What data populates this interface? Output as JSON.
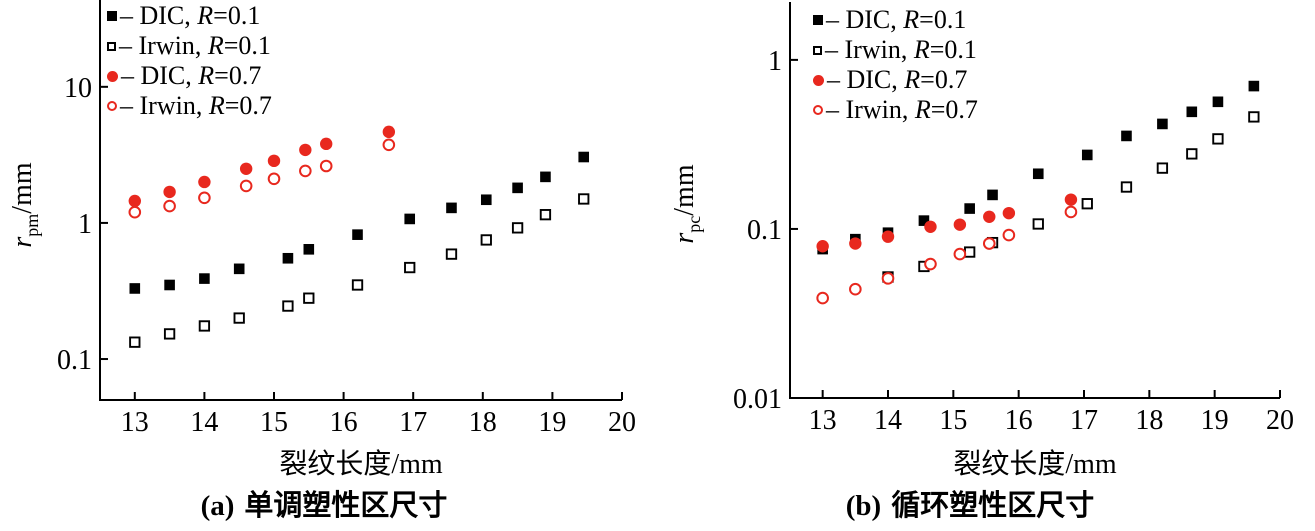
{
  "figure": {
    "background": "#ffffff",
    "accent_red": "#e8281e",
    "accent_black": "#000000"
  },
  "chart_data": [
    {
      "type": "scatter",
      "caption_tag": "(a)",
      "caption_text": "单调塑性区尺寸",
      "xlabel": "裂纹长度/mm",
      "ylabel_sym": "r",
      "ylabel_sub": "pm",
      "ylabel_unit": "/mm",
      "x_axis": {
        "lim": [
          12.5,
          20
        ],
        "ticks": [
          13,
          14,
          15,
          16,
          17,
          18,
          19,
          20
        ]
      },
      "y_axis": {
        "scale": "log",
        "lim": [
          0.05,
          42
        ],
        "ticks": [
          {
            "value": 0.1,
            "label": "0.1"
          },
          {
            "value": 1,
            "label": "1"
          },
          {
            "value": 10,
            "label": "10"
          }
        ]
      },
      "legend": [
        {
          "marker": "square-filled",
          "color": "#000000",
          "prefix": "– DIC, ",
          "r": "R",
          "value": "=0.1"
        },
        {
          "marker": "square-open",
          "color": "#000000",
          "prefix": "– Irwin, ",
          "r": "R",
          "value": "=0.1"
        },
        {
          "marker": "circle-filled",
          "color": "#e8281e",
          "prefix": "– DIC, ",
          "r": "R",
          "value": "=0.7"
        },
        {
          "marker": "circle-open",
          "color": "#e8281e",
          "prefix": "– Irwin, ",
          "r": "R",
          "value": "=0.7"
        }
      ],
      "series": [
        {
          "name": "DIC, R=0.1",
          "marker": "square-filled",
          "color": "#000000",
          "x": [
            13.0,
            13.5,
            14.0,
            14.5,
            15.2,
            15.5,
            16.2,
            16.95,
            17.55,
            18.05,
            18.5,
            18.9,
            19.45
          ],
          "y": [
            0.33,
            0.35,
            0.39,
            0.46,
            0.55,
            0.64,
            0.82,
            1.07,
            1.29,
            1.48,
            1.81,
            2.18,
            3.05
          ]
        },
        {
          "name": "Irwin, R=0.1",
          "marker": "square-open",
          "color": "#000000",
          "x": [
            13.0,
            13.5,
            14.0,
            14.5,
            15.2,
            15.5,
            16.2,
            16.95,
            17.55,
            18.05,
            18.5,
            18.9,
            19.45
          ],
          "y": [
            0.133,
            0.153,
            0.175,
            0.2,
            0.245,
            0.28,
            0.35,
            0.47,
            0.59,
            0.75,
            0.92,
            1.15,
            1.5
          ]
        },
        {
          "name": "DIC, R=0.7",
          "marker": "circle-filled",
          "color": "#e8281e",
          "x": [
            13.0,
            13.5,
            14.0,
            14.6,
            15.0,
            15.45,
            15.75,
            16.65
          ],
          "y": [
            1.45,
            1.69,
            2.0,
            2.5,
            2.86,
            3.44,
            3.81,
            4.67
          ]
        },
        {
          "name": "Irwin, R=0.7",
          "marker": "circle-open",
          "color": "#e8281e",
          "x": [
            13.0,
            13.5,
            14.0,
            14.6,
            15.0,
            15.45,
            15.75,
            16.65
          ],
          "y": [
            1.2,
            1.33,
            1.53,
            1.87,
            2.11,
            2.41,
            2.62,
            3.75
          ]
        }
      ]
    },
    {
      "type": "scatter",
      "caption_tag": "(b)",
      "caption_text": "循环塑性区尺寸",
      "xlabel": "裂纹长度/mm",
      "ylabel_sym": "r",
      "ylabel_sub": "pc",
      "ylabel_unit": "/mm",
      "x_axis": {
        "lim": [
          12.5,
          20
        ],
        "ticks": [
          13,
          14,
          15,
          16,
          17,
          18,
          19,
          20
        ]
      },
      "y_axis": {
        "scale": "log",
        "lim": [
          0.01,
          2.2
        ],
        "ticks": [
          {
            "value": 0.01,
            "label": "0.01"
          },
          {
            "value": 0.1,
            "label": "0.1"
          },
          {
            "value": 1,
            "label": "1"
          }
        ]
      },
      "legend": [
        {
          "marker": "square-filled",
          "color": "#000000",
          "prefix": "– DIC, ",
          "r": "R",
          "value": "=0.1"
        },
        {
          "marker": "square-open",
          "color": "#000000",
          "prefix": "– Irwin, ",
          "r": "R",
          "value": "=0.1"
        },
        {
          "marker": "circle-filled",
          "color": "#e8281e",
          "prefix": "– DIC, ",
          "r": "R",
          "value": "=0.7"
        },
        {
          "marker": "circle-open",
          "color": "#e8281e",
          "prefix": "– Irwin, ",
          "r": "R",
          "value": "=0.7"
        }
      ],
      "series": [
        {
          "name": "DIC, R=0.1",
          "marker": "square-filled",
          "color": "#000000",
          "x": [
            13.0,
            13.5,
            14.0,
            14.55,
            15.25,
            15.6,
            16.3,
            17.05,
            17.65,
            18.2,
            18.65,
            19.05,
            19.6
          ],
          "y": [
            0.076,
            0.087,
            0.095,
            0.112,
            0.132,
            0.159,
            0.212,
            0.274,
            0.355,
            0.418,
            0.493,
            0.565,
            0.7
          ]
        },
        {
          "name": "Irwin, R=0.1",
          "marker": "square-open",
          "color": "#000000",
          "x": [
            14.0,
            14.55,
            15.25,
            15.6,
            16.3,
            17.05,
            17.65,
            18.2,
            18.65,
            19.05,
            19.6
          ],
          "y": [
            0.052,
            0.06,
            0.073,
            0.083,
            0.107,
            0.141,
            0.177,
            0.229,
            0.278,
            0.341,
            0.46
          ]
        },
        {
          "name": "DIC, R=0.7",
          "marker": "circle-filled",
          "color": "#e8281e",
          "x": [
            13.0,
            13.5,
            14.0,
            14.65,
            15.1,
            15.55,
            15.85,
            16.8
          ],
          "y": [
            0.079,
            0.082,
            0.09,
            0.103,
            0.106,
            0.118,
            0.124,
            0.149
          ]
        },
        {
          "name": "Irwin, R=0.7",
          "marker": "circle-open",
          "color": "#e8281e",
          "x": [
            13.0,
            13.5,
            14.0,
            14.65,
            15.1,
            15.55,
            15.85,
            16.8
          ],
          "y": [
            0.039,
            0.044,
            0.051,
            0.062,
            0.071,
            0.082,
            0.092,
            0.126
          ]
        }
      ]
    }
  ]
}
